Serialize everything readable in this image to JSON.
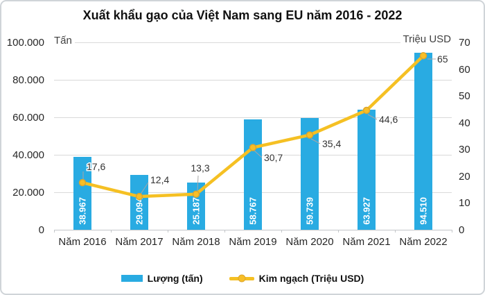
{
  "title": "Xuất khẩu gạo của Việt Nam sang EU năm 2016 - 2022",
  "chart_data": {
    "type": "combo-bar-line",
    "categories": [
      "Năm 2016",
      "Năm 2017",
      "Năm 2018",
      "Năm 2019",
      "Năm 2020",
      "Năm 2021",
      "Năm 2022"
    ],
    "series": [
      {
        "name": "Lượng (tấn)",
        "chart_type": "bar",
        "axis": "left",
        "values": [
          38967,
          29094,
          25187,
          58767,
          59739,
          63927,
          94510
        ],
        "value_labels": [
          "38.967",
          "29.094",
          "25.187",
          "58.767",
          "59.739",
          "63.927",
          "94.510"
        ],
        "color": "#29ABE2"
      },
      {
        "name": "Kim ngạch (Triệu USD)",
        "chart_type": "line",
        "axis": "right",
        "values": [
          17.6,
          12.4,
          13.3,
          30.7,
          35.4,
          44.6,
          65
        ],
        "value_labels": [
          "17,6",
          "12,4",
          "13,3",
          "30,7",
          "35,4",
          "44,6",
          "65"
        ],
        "color": "#F5C023",
        "marker_color": "#F8BE26",
        "marker_stroke": "#DCA62E"
      }
    ],
    "left_axis": {
      "title": "Tấn",
      "min": 0,
      "max": 100000,
      "tick_labels_top_to_bottom": [
        "100.000",
        "80.000",
        "60.000",
        "40.000",
        "20.000",
        "0"
      ]
    },
    "right_axis": {
      "title": "Triệu USD",
      "min": 0,
      "max": 70,
      "tick_labels_top_to_bottom": [
        "70",
        "60",
        "50",
        "40",
        "30",
        "20",
        "10",
        "0"
      ]
    },
    "gridlines": true,
    "legend_position": "bottom",
    "data_label_color": "#333333",
    "leader_line_color": "#A6A6A6"
  }
}
